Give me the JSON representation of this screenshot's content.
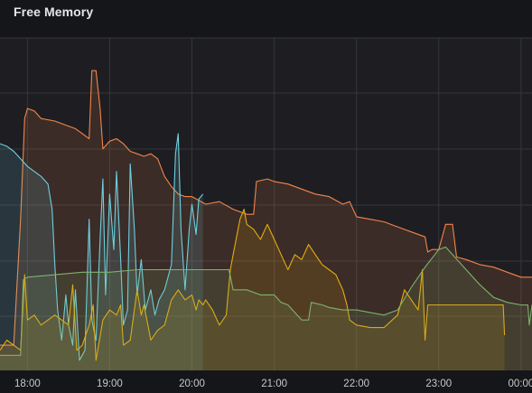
{
  "panel": {
    "title": "Free Memory"
  },
  "chart_data": {
    "type": "area",
    "title": "Free Memory",
    "grid": true,
    "legend": "none",
    "xlim": [
      "17:40",
      "00:08"
    ],
    "ylim": [
      0,
      6.6
    ],
    "x_ticks": [
      "18:00",
      "19:00",
      "20:00",
      "21:00",
      "22:00",
      "23:00",
      "00:00"
    ],
    "series": [
      {
        "color": "#f2854a",
        "points": [
          [
            "17:40",
            0.5
          ],
          [
            "17:50",
            0.5
          ],
          [
            "17:52",
            1.5
          ],
          [
            "17:55",
            3.0
          ],
          [
            "17:58",
            5.0
          ],
          [
            "18:00",
            5.2
          ],
          [
            "18:05",
            5.15
          ],
          [
            "18:10",
            5.0
          ],
          [
            "18:20",
            4.95
          ],
          [
            "18:30",
            4.85
          ],
          [
            "18:35",
            4.8
          ],
          [
            "18:40",
            4.7
          ],
          [
            "18:45",
            4.6
          ],
          [
            "18:47",
            5.95
          ],
          [
            "18:50",
            5.95
          ],
          [
            "18:53",
            5.2
          ],
          [
            "18:55",
            4.4
          ],
          [
            "19:00",
            4.55
          ],
          [
            "19:05",
            4.6
          ],
          [
            "19:10",
            4.5
          ],
          [
            "19:15",
            4.35
          ],
          [
            "19:20",
            4.3
          ],
          [
            "19:25",
            4.25
          ],
          [
            "19:30",
            4.3
          ],
          [
            "19:35",
            4.2
          ],
          [
            "19:40",
            3.85
          ],
          [
            "19:45",
            3.65
          ],
          [
            "19:50",
            3.5
          ],
          [
            "19:55",
            3.45
          ],
          [
            "20:00",
            3.45
          ],
          [
            "20:10",
            3.3
          ],
          [
            "20:20",
            3.35
          ],
          [
            "20:30",
            3.2
          ],
          [
            "20:40",
            3.1
          ],
          [
            "20:45",
            3.1
          ],
          [
            "20:47",
            3.75
          ],
          [
            "20:55",
            3.8
          ],
          [
            "21:00",
            3.75
          ],
          [
            "21:10",
            3.7
          ],
          [
            "21:20",
            3.6
          ],
          [
            "21:30",
            3.5
          ],
          [
            "21:40",
            3.45
          ],
          [
            "21:50",
            3.3
          ],
          [
            "21:55",
            3.35
          ],
          [
            "22:00",
            3.05
          ],
          [
            "22:10",
            3.0
          ],
          [
            "22:20",
            2.95
          ],
          [
            "22:30",
            2.85
          ],
          [
            "22:40",
            2.75
          ],
          [
            "22:50",
            2.65
          ],
          [
            "22:52",
            2.35
          ],
          [
            "22:55",
            2.4
          ],
          [
            "23:00",
            2.4
          ],
          [
            "23:05",
            2.9
          ],
          [
            "23:10",
            2.9
          ],
          [
            "23:13",
            2.25
          ],
          [
            "23:20",
            2.2
          ],
          [
            "23:30",
            2.1
          ],
          [
            "23:40",
            2.05
          ],
          [
            "23:50",
            1.95
          ],
          [
            "00:00",
            1.85
          ],
          [
            "00:05",
            1.85
          ],
          [
            "00:08",
            1.85
          ]
        ]
      },
      {
        "color": "#6ed0e0",
        "points": [
          [
            "17:40",
            4.5
          ],
          [
            "17:45",
            4.45
          ],
          [
            "17:50",
            4.35
          ],
          [
            "17:55",
            4.2
          ],
          [
            "18:00",
            4.05
          ],
          [
            "18:05",
            3.95
          ],
          [
            "18:10",
            3.85
          ],
          [
            "18:15",
            3.7
          ],
          [
            "18:18",
            3.2
          ],
          [
            "18:20",
            2.1
          ],
          [
            "18:22",
            1.2
          ],
          [
            "18:25",
            0.6
          ],
          [
            "18:28",
            1.5
          ],
          [
            "18:30",
            0.9
          ],
          [
            "18:33",
            0.5
          ],
          [
            "18:35",
            1.6
          ],
          [
            "18:38",
            0.2
          ],
          [
            "18:42",
            0.4
          ],
          [
            "18:45",
            3.0
          ],
          [
            "18:47",
            1.0
          ],
          [
            "18:50",
            0.6
          ],
          [
            "18:53",
            2.6
          ],
          [
            "18:55",
            3.8
          ],
          [
            "18:57",
            1.5
          ],
          [
            "19:00",
            3.5
          ],
          [
            "19:03",
            2.4
          ],
          [
            "19:05",
            3.95
          ],
          [
            "19:08",
            2.2
          ],
          [
            "19:10",
            0.9
          ],
          [
            "19:13",
            1.2
          ],
          [
            "19:15",
            4.1
          ],
          [
            "19:18",
            2.8
          ],
          [
            "19:20",
            1.5
          ],
          [
            "19:23",
            2.2
          ],
          [
            "19:26",
            1.2
          ],
          [
            "19:30",
            1.6
          ],
          [
            "19:33",
            1.1
          ],
          [
            "19:36",
            1.4
          ],
          [
            "19:40",
            1.6
          ],
          [
            "19:45",
            2.1
          ],
          [
            "19:48",
            4.3
          ],
          [
            "19:50",
            4.7
          ],
          [
            "19:52",
            2.8
          ],
          [
            "19:55",
            1.6
          ],
          [
            "19:58",
            2.8
          ],
          [
            "20:00",
            3.3
          ],
          [
            "20:03",
            2.7
          ],
          [
            "20:05",
            3.4
          ],
          [
            "20:08",
            3.5
          ]
        ]
      },
      {
        "color": "#e5ac0e",
        "points": [
          [
            "17:40",
            0.4
          ],
          [
            "17:45",
            0.6
          ],
          [
            "17:50",
            0.5
          ],
          [
            "17:55",
            0.4
          ],
          [
            "17:58",
            1.9
          ],
          [
            "18:00",
            1.0
          ],
          [
            "18:05",
            1.1
          ],
          [
            "18:10",
            0.9
          ],
          [
            "18:15",
            1.0
          ],
          [
            "18:20",
            1.1
          ],
          [
            "18:25",
            1.0
          ],
          [
            "18:30",
            0.9
          ],
          [
            "18:33",
            1.7
          ],
          [
            "18:36",
            0.4
          ],
          [
            "18:40",
            0.5
          ],
          [
            "18:45",
            0.9
          ],
          [
            "18:48",
            1.3
          ],
          [
            "18:50",
            0.2
          ],
          [
            "18:55",
            1.0
          ],
          [
            "19:00",
            1.2
          ],
          [
            "19:05",
            1.1
          ],
          [
            "19:08",
            1.3
          ],
          [
            "19:10",
            0.5
          ],
          [
            "19:15",
            0.6
          ],
          [
            "19:20",
            1.6
          ],
          [
            "19:23",
            1.1
          ],
          [
            "19:25",
            1.3
          ],
          [
            "19:30",
            0.6
          ],
          [
            "19:35",
            0.8
          ],
          [
            "19:40",
            0.9
          ],
          [
            "19:45",
            1.4
          ],
          [
            "19:50",
            1.6
          ],
          [
            "19:55",
            1.4
          ],
          [
            "20:00",
            1.5
          ],
          [
            "20:03",
            1.2
          ],
          [
            "20:05",
            1.4
          ],
          [
            "20:08",
            1.3
          ],
          [
            "20:10",
            1.4
          ],
          [
            "20:15",
            1.2
          ],
          [
            "20:20",
            0.9
          ],
          [
            "20:25",
            1.1
          ],
          [
            "20:28",
            2.0
          ],
          [
            "20:30",
            2.3
          ],
          [
            "20:35",
            3.0
          ],
          [
            "20:38",
            3.2
          ],
          [
            "20:40",
            2.9
          ],
          [
            "20:45",
            2.8
          ],
          [
            "20:50",
            2.6
          ],
          [
            "20:55",
            2.9
          ],
          [
            "21:00",
            2.6
          ],
          [
            "21:05",
            2.3
          ],
          [
            "21:10",
            2.0
          ],
          [
            "21:15",
            2.3
          ],
          [
            "21:20",
            2.2
          ],
          [
            "21:25",
            2.5
          ],
          [
            "21:30",
            2.3
          ],
          [
            "21:35",
            2.1
          ],
          [
            "21:40",
            2.0
          ],
          [
            "21:45",
            1.9
          ],
          [
            "21:50",
            1.6
          ],
          [
            "21:53",
            1.3
          ],
          [
            "21:55",
            1.0
          ],
          [
            "22:00",
            0.9
          ],
          [
            "22:10",
            0.85
          ],
          [
            "22:20",
            0.85
          ],
          [
            "22:30",
            1.1
          ],
          [
            "22:35",
            1.6
          ],
          [
            "22:40",
            1.4
          ],
          [
            "22:45",
            1.2
          ],
          [
            "22:48",
            2.0
          ],
          [
            "22:50",
            0.6
          ],
          [
            "22:52",
            1.3
          ],
          [
            "23:00",
            1.3
          ],
          [
            "23:10",
            1.3
          ],
          [
            "23:20",
            1.3
          ],
          [
            "23:30",
            1.3
          ],
          [
            "23:40",
            1.3
          ],
          [
            "23:47",
            1.3
          ],
          [
            "23:48",
            0.7
          ]
        ]
      },
      {
        "color": "#7eb26d",
        "points": [
          [
            "17:40",
            0.3
          ],
          [
            "17:55",
            0.3
          ],
          [
            "17:57",
            1.8
          ],
          [
            "18:00",
            1.85
          ],
          [
            "18:20",
            1.9
          ],
          [
            "18:40",
            1.95
          ],
          [
            "19:00",
            1.95
          ],
          [
            "19:20",
            2.0
          ],
          [
            "19:40",
            2.0
          ],
          [
            "20:00",
            2.0
          ],
          [
            "20:20",
            2.0
          ],
          [
            "20:27",
            2.0
          ],
          [
            "20:30",
            1.6
          ],
          [
            "20:40",
            1.6
          ],
          [
            "20:50",
            1.5
          ],
          [
            "21:00",
            1.5
          ],
          [
            "21:05",
            1.35
          ],
          [
            "21:10",
            1.3
          ],
          [
            "21:20",
            1.0
          ],
          [
            "21:25",
            1.0
          ],
          [
            "21:27",
            1.35
          ],
          [
            "21:35",
            1.3
          ],
          [
            "21:40",
            1.25
          ],
          [
            "21:50",
            1.2
          ],
          [
            "22:00",
            1.2
          ],
          [
            "22:10",
            1.15
          ],
          [
            "22:20",
            1.1
          ],
          [
            "22:30",
            1.2
          ],
          [
            "22:40",
            1.65
          ],
          [
            "22:50",
            2.05
          ],
          [
            "23:00",
            2.4
          ],
          [
            "23:05",
            2.45
          ],
          [
            "23:10",
            2.3
          ],
          [
            "23:20",
            2.0
          ],
          [
            "23:30",
            1.7
          ],
          [
            "23:40",
            1.45
          ],
          [
            "23:50",
            1.35
          ],
          [
            "00:00",
            1.3
          ],
          [
            "00:05",
            1.3
          ],
          [
            "00:06",
            0.9
          ],
          [
            "00:08",
            1.3
          ]
        ]
      }
    ]
  }
}
